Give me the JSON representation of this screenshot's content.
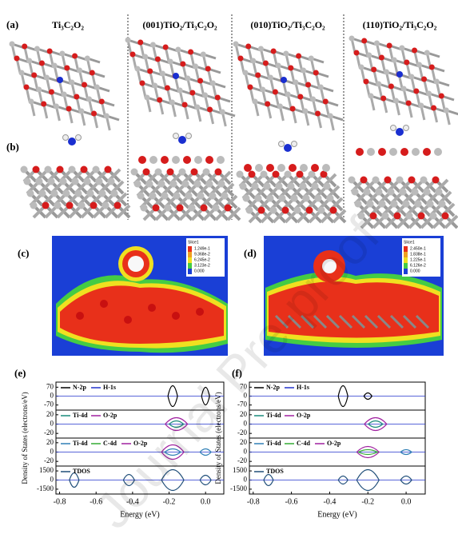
{
  "figure": {
    "panel_labels": [
      "(a)",
      "(b)",
      "(c)",
      "(d)",
      "(e)",
      "(f)"
    ],
    "column_headers": [
      "Ti₃C₂O₂",
      "(001)TiO₂/Ti₃C₂O₂",
      "(010)TiO₂/Ti₃C₂O₂",
      "(110)TiO₂/Ti₃C₂O₂"
    ],
    "colorbars": [
      {
        "title": "Slice1",
        "ticks": [
          "1.249e-1",
          "9.368e-2",
          "6.245e-2",
          "3.123e-2",
          "0.000"
        ]
      },
      {
        "title": "Slice1",
        "ticks": [
          "2.450e-1",
          "1.838e-1",
          "1.225e-1",
          "6.126e-2",
          "0.000"
        ]
      }
    ],
    "dos": [
      {
        "xlabel": "Energy (eV)",
        "ylabel": "Density of States (electrons/eV)",
        "xlim": [
          -0.82,
          0.1
        ],
        "xticks": [
          -0.8,
          -0.6,
          -0.4,
          -0.2,
          {
            "value": 0,
            "label": "0.0"
          }
        ],
        "subplots": [
          {
            "ylim": [
              -110,
              110
            ],
            "yticks": [
              70,
              0,
              -70
            ],
            "legend": [
              {
                "name": "N-2p",
                "color": "#000000"
              },
              {
                "name": "H-1s",
                "color": "#2233cc"
              }
            ]
          },
          {
            "ylim": [
              -30,
              30
            ],
            "yticks": [
              20,
              0,
              -20
            ],
            "legend": [
              {
                "name": "Ti-4d",
                "color": "#1a8a7a"
              },
              {
                "name": "O-2p",
                "color": "#a020a0"
              }
            ]
          },
          {
            "ylim": [
              -30,
              30
            ],
            "yticks": [
              20,
              0,
              -20
            ],
            "legend": [
              {
                "name": "Ti-4d",
                "color": "#2f7fb5"
              },
              {
                "name": "C-4d",
                "color": "#33aa33"
              },
              {
                "name": "O-2p",
                "color": "#a020a0"
              }
            ]
          },
          {
            "ylim": [
              -2300,
              2300
            ],
            "yticks": [
              1500,
              0,
              -1500
            ],
            "legend": [
              {
                "name": "TDOS",
                "color": "#1f4e79"
              }
            ]
          }
        ]
      },
      {
        "xlabel": "Energy (eV)",
        "ylabel": "Density of States (electrons/eV)",
        "xlim": [
          -0.82,
          0.1
        ],
        "xticks": [
          -0.8,
          -0.6,
          -0.4,
          -0.2,
          {
            "value": 0,
            "label": "0.0"
          }
        ],
        "subplots": [
          {
            "ylim": [
              -110,
              110
            ],
            "yticks": [
              70,
              0,
              -70
            ],
            "legend": [
              {
                "name": "N-2p",
                "color": "#000000"
              },
              {
                "name": "H-1s",
                "color": "#2233cc"
              }
            ]
          },
          {
            "ylim": [
              -30,
              30
            ],
            "yticks": [
              20,
              0,
              -20
            ],
            "legend": [
              {
                "name": "Ti-4d",
                "color": "#1a8a7a"
              },
              {
                "name": "O-2p",
                "color": "#a020a0"
              }
            ]
          },
          {
            "ylim": [
              -30,
              30
            ],
            "yticks": [
              20,
              0,
              -20
            ],
            "legend": [
              {
                "name": "Ti-4d",
                "color": "#2f7fb5"
              },
              {
                "name": "C-4d",
                "color": "#33aa33"
              },
              {
                "name": "O-2p",
                "color": "#a020a0"
              }
            ]
          },
          {
            "ylim": [
              -2300,
              2300
            ],
            "yticks": [
              1500,
              0,
              -1500
            ],
            "legend": [
              {
                "name": "TDOS",
                "color": "#1f4e79"
              }
            ]
          }
        ]
      }
    ],
    "watermark": "Journal Pre-proof"
  }
}
